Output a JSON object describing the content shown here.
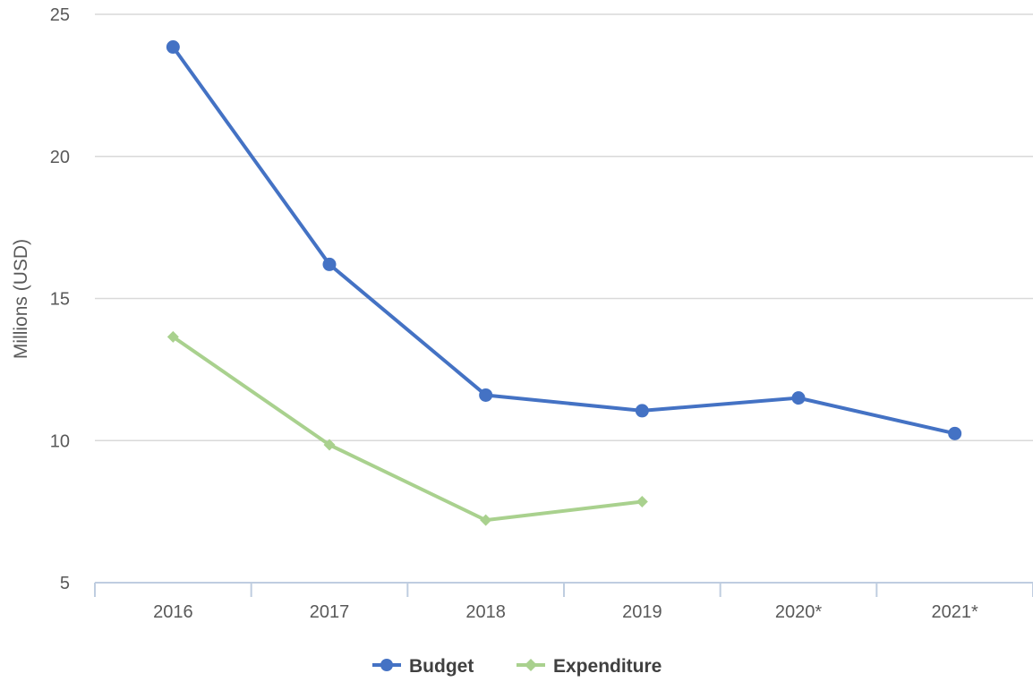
{
  "chart_data": {
    "type": "line",
    "categories": [
      "2016",
      "2017",
      "2018",
      "2019",
      "2020*",
      "2021*"
    ],
    "ylabel": "Millions (USD)",
    "ylim": [
      5,
      25
    ],
    "yticks": [
      5,
      10,
      15,
      20,
      25
    ],
    "grid": true,
    "legend_position": "bottom",
    "series": [
      {
        "name": "Budget",
        "values": [
          23.85,
          16.2,
          11.6,
          11.05,
          11.5,
          10.25
        ],
        "color": "#4472c4",
        "marker": "circle"
      },
      {
        "name": "Expenditure",
        "values": [
          13.65,
          9.85,
          7.2,
          7.85,
          null,
          null
        ],
        "color": "#a9d18e",
        "marker": "diamond"
      }
    ]
  }
}
